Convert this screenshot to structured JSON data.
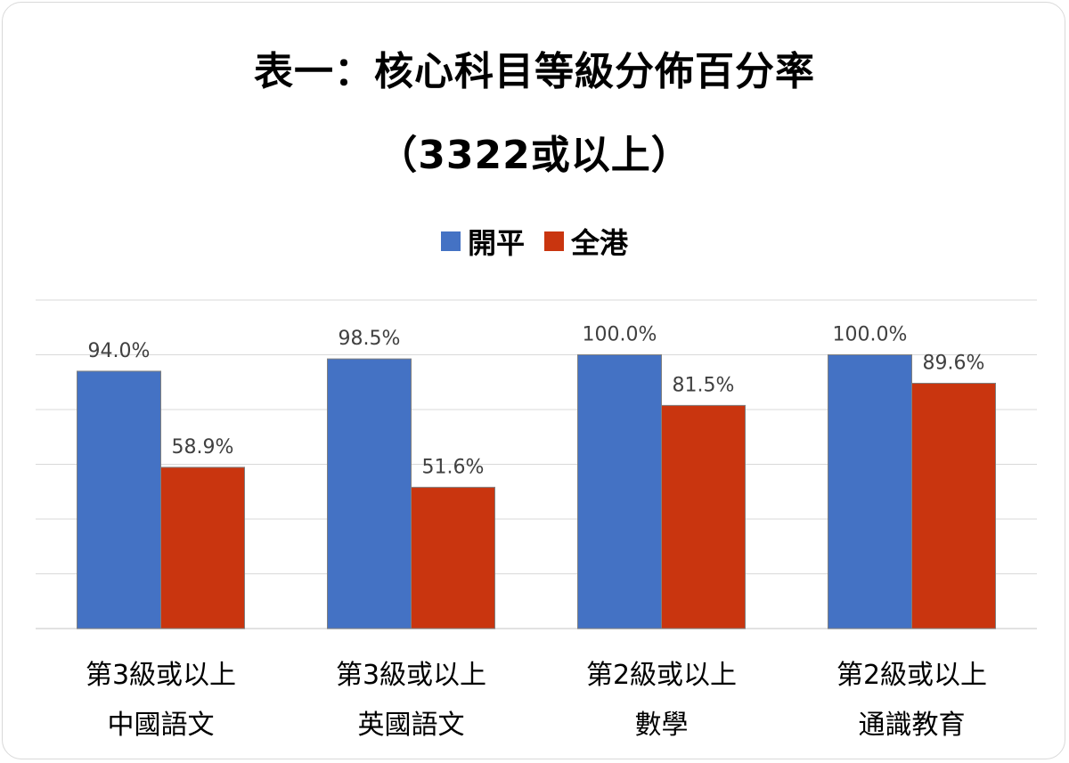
{
  "title_line1": "表一：核心科目等級分佈百分率",
  "title_line2": "（3322或以上）",
  "colors": {
    "series1": "#4472c4",
    "series2": "#c9350f",
    "grid": "#d9d9d9",
    "label": "#404040"
  },
  "chart_data": {
    "type": "bar",
    "title": "表一：核心科目等級分佈百分率（3322或以上）",
    "categories": [
      [
        "第3級或以上",
        "中國語文"
      ],
      [
        "第3級或以上",
        "英國語文"
      ],
      [
        "第2級或以上",
        "數學"
      ],
      [
        "第2級或以上",
        "通識教育"
      ]
    ],
    "series": [
      {
        "name": "開平",
        "values": [
          94.0,
          98.5,
          100.0,
          100.0
        ],
        "labels": [
          "94.0%",
          "98.5%",
          "100.0%",
          "100.0%"
        ]
      },
      {
        "name": "全港",
        "values": [
          58.9,
          51.6,
          81.5,
          89.6
        ],
        "labels": [
          "58.9%",
          "51.6%",
          "81.5%",
          "89.6%"
        ]
      }
    ],
    "ylim": [
      0,
      120
    ],
    "grid": true,
    "legend_position": "top-center"
  }
}
